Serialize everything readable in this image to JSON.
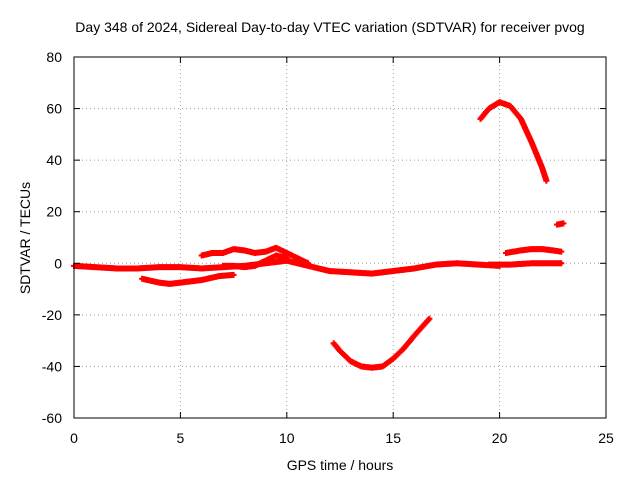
{
  "chart_data": {
    "type": "scatter",
    "title": "Day 348 of 2024, Sidereal Day-to-day VTEC variation (SDTVAR) for receiver pvog",
    "xlabel": "GPS time / hours",
    "ylabel": "SDTVAR / TECUs",
    "xlim": [
      0,
      25
    ],
    "ylim": [
      -60,
      80
    ],
    "xticks": [
      "0",
      "5",
      "10",
      "15",
      "20",
      "25"
    ],
    "yticks": [
      "-60",
      "-40",
      "-20",
      "0",
      "20",
      "40",
      "60",
      "80"
    ],
    "grid": true,
    "marker_color": "#ff0000",
    "series": [
      {
        "name": "baseline-track",
        "points": [
          [
            0,
            -1
          ],
          [
            1,
            -1.5
          ],
          [
            2,
            -2
          ],
          [
            3,
            -2
          ],
          [
            4,
            -1.5
          ],
          [
            5,
            -1.5
          ],
          [
            6,
            -2
          ],
          [
            7,
            -1.5
          ],
          [
            8,
            -1
          ],
          [
            9,
            0
          ],
          [
            10,
            1
          ],
          [
            11,
            -1
          ],
          [
            12,
            -3
          ],
          [
            13,
            -3.5
          ],
          [
            14,
            -4
          ],
          [
            15,
            -3
          ],
          [
            16,
            -2
          ],
          [
            17,
            -0.5
          ],
          [
            18,
            0
          ],
          [
            19,
            -0.5
          ],
          [
            20,
            -1
          ]
        ]
      },
      {
        "name": "upper-track",
        "points": [
          [
            6,
            3
          ],
          [
            6.5,
            4
          ],
          [
            7,
            4
          ],
          [
            7.5,
            5.5
          ],
          [
            8,
            5
          ],
          [
            8.5,
            4
          ],
          [
            9,
            4.5
          ],
          [
            9.5,
            6
          ],
          [
            10,
            4
          ],
          [
            10.5,
            2
          ],
          [
            11,
            0
          ]
        ]
      },
      {
        "name": "lower-track",
        "points": [
          [
            3.2,
            -6
          ],
          [
            4,
            -7.5
          ],
          [
            4.5,
            -8
          ],
          [
            5,
            -7.5
          ],
          [
            6,
            -6.5
          ],
          [
            6.8,
            -5
          ],
          [
            7.5,
            -4.5
          ]
        ]
      },
      {
        "name": "mid-track",
        "points": [
          [
            7,
            -1
          ],
          [
            7.5,
            -1
          ],
          [
            8,
            -1.5
          ],
          [
            8.5,
            -1
          ],
          [
            9,
            1
          ],
          [
            9.5,
            3
          ],
          [
            10,
            2
          ]
        ]
      },
      {
        "name": "dip-track",
        "points": [
          [
            12.2,
            -31
          ],
          [
            12.5,
            -34
          ],
          [
            13,
            -38
          ],
          [
            13.5,
            -40
          ],
          [
            14,
            -40.5
          ],
          [
            14.5,
            -40
          ],
          [
            15,
            -37
          ],
          [
            15.5,
            -33
          ],
          [
            16,
            -28
          ],
          [
            16.7,
            -21.5
          ]
        ]
      },
      {
        "name": "arc-track",
        "points": [
          [
            19.1,
            56
          ],
          [
            19.5,
            60
          ],
          [
            20,
            62.5
          ],
          [
            20.5,
            61
          ],
          [
            21,
            56
          ],
          [
            21.5,
            47
          ],
          [
            22,
            37
          ],
          [
            22.2,
            32
          ]
        ]
      },
      {
        "name": "late-upper-track",
        "points": [
          [
            20.3,
            4
          ],
          [
            21,
            5
          ],
          [
            21.5,
            5.5
          ],
          [
            22,
            5.5
          ],
          [
            22.5,
            5
          ],
          [
            22.9,
            4.5
          ]
        ]
      },
      {
        "name": "late-flat-track",
        "points": [
          [
            19.5,
            -0.5
          ],
          [
            20.5,
            -0.5
          ],
          [
            21.5,
            0
          ],
          [
            22.5,
            0
          ],
          [
            22.9,
            0
          ]
        ]
      },
      {
        "name": "late-short-track",
        "points": [
          [
            22.7,
            15
          ],
          [
            23,
            15.5
          ]
        ]
      }
    ]
  }
}
